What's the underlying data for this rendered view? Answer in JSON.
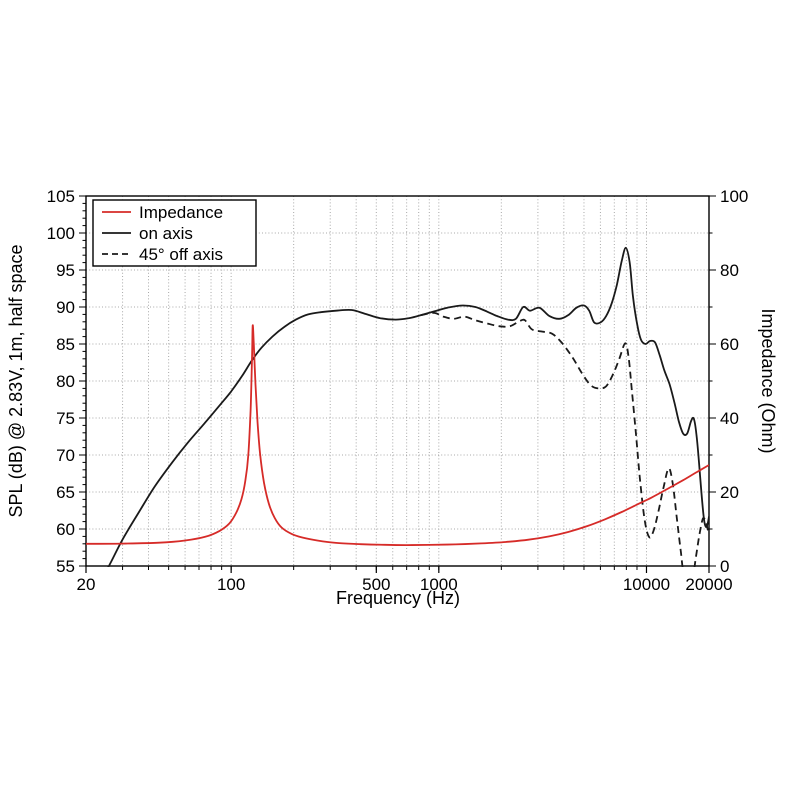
{
  "chart_data": {
    "type": "line",
    "title": "",
    "xlabel": "Frequency (Hz)",
    "ylabel_left": "SPL (dB) @ 2.83V, 1m, half space",
    "ylabel_right": "Impedance (Ohm)",
    "x_scale": "log",
    "xlim": [
      20,
      20000
    ],
    "ylim_left": [
      55,
      105
    ],
    "ylim_right": [
      0,
      100
    ],
    "x_ticks_labeled": [
      20,
      100,
      500,
      1000,
      10000,
      20000
    ],
    "y_ticks_left": [
      55,
      60,
      65,
      70,
      75,
      80,
      85,
      90,
      95,
      100,
      105
    ],
    "y_ticks_right": [
      0,
      20,
      40,
      60,
      80,
      100
    ],
    "grid": true,
    "legend_position": "upper left",
    "colors": {
      "impedance": "#d62b28",
      "spl": "#1a1a1a",
      "grid": "#a8a8a8",
      "frame": "#000000"
    },
    "series": [
      {
        "name": "Impedance",
        "axis": "right",
        "color": "#d62b28",
        "dash": "solid",
        "points": [
          [
            20,
            6.0
          ],
          [
            30,
            6.05
          ],
          [
            45,
            6.3
          ],
          [
            60,
            6.9
          ],
          [
            75,
            7.9
          ],
          [
            88,
            9.5
          ],
          [
            98,
            11.5
          ],
          [
            106,
            14.5
          ],
          [
            112,
            18
          ],
          [
            117,
            23
          ],
          [
            121,
            30
          ],
          [
            124,
            42
          ],
          [
            126,
            56
          ],
          [
            127,
            65
          ],
          [
            128.5,
            60
          ],
          [
            131,
            49
          ],
          [
            134,
            39
          ],
          [
            138,
            30
          ],
          [
            144,
            22.5
          ],
          [
            152,
            16.8
          ],
          [
            162,
            13.0
          ],
          [
            175,
            10.4
          ],
          [
            195,
            8.7
          ],
          [
            220,
            7.7
          ],
          [
            260,
            6.9
          ],
          [
            320,
            6.25
          ],
          [
            420,
            5.9
          ],
          [
            550,
            5.72
          ],
          [
            700,
            5.65
          ],
          [
            900,
            5.7
          ],
          [
            1200,
            5.85
          ],
          [
            1600,
            6.1
          ],
          [
            2100,
            6.5
          ],
          [
            2700,
            7.1
          ],
          [
            3400,
            8.0
          ],
          [
            4200,
            9.2
          ],
          [
            5200,
            10.8
          ],
          [
            6300,
            12.6
          ],
          [
            7600,
            14.6
          ],
          [
            9000,
            16.6
          ],
          [
            10500,
            18.4
          ],
          [
            12500,
            20.7
          ],
          [
            15000,
            23.2
          ],
          [
            17500,
            25.4
          ],
          [
            20000,
            27.3
          ]
        ]
      },
      {
        "name": "on axis",
        "axis": "left",
        "color": "#1a1a1a",
        "dash": "solid",
        "points": [
          [
            22,
            51.5
          ],
          [
            26,
            55.2
          ],
          [
            30,
            58.6
          ],
          [
            36,
            62.3
          ],
          [
            43,
            65.8
          ],
          [
            52,
            69.0
          ],
          [
            62,
            71.7
          ],
          [
            74,
            74.2
          ],
          [
            88,
            76.7
          ],
          [
            100,
            78.6
          ],
          [
            113,
            80.7
          ],
          [
            126,
            82.8
          ],
          [
            140,
            84.5
          ],
          [
            158,
            86.0
          ],
          [
            180,
            87.3
          ],
          [
            205,
            88.3
          ],
          [
            235,
            89.0
          ],
          [
            270,
            89.3
          ],
          [
            320,
            89.5
          ],
          [
            380,
            89.6
          ],
          [
            440,
            89.1
          ],
          [
            520,
            88.5
          ],
          [
            620,
            88.3
          ],
          [
            720,
            88.5
          ],
          [
            820,
            88.9
          ],
          [
            950,
            89.4
          ],
          [
            1100,
            89.9
          ],
          [
            1300,
            90.2
          ],
          [
            1500,
            90.0
          ],
          [
            1700,
            89.4
          ],
          [
            1900,
            88.8
          ],
          [
            2150,
            88.3
          ],
          [
            2350,
            88.4
          ],
          [
            2550,
            90.0
          ],
          [
            2750,
            89.5
          ],
          [
            3050,
            89.9
          ],
          [
            3400,
            88.8
          ],
          [
            3800,
            88.4
          ],
          [
            4200,
            88.9
          ],
          [
            4600,
            89.9
          ],
          [
            5000,
            90.2
          ],
          [
            5300,
            89.5
          ],
          [
            5600,
            87.9
          ],
          [
            6000,
            87.9
          ],
          [
            6400,
            88.8
          ],
          [
            6800,
            90.5
          ],
          [
            7200,
            93.0
          ],
          [
            7600,
            96.2
          ],
          [
            7950,
            98.0
          ],
          [
            8300,
            96.0
          ],
          [
            8600,
            91.5
          ],
          [
            9000,
            87.8
          ],
          [
            9400,
            85.6
          ],
          [
            9900,
            85.0
          ],
          [
            10400,
            85.4
          ],
          [
            11000,
            85.2
          ],
          [
            11600,
            83.4
          ],
          [
            12200,
            81.4
          ],
          [
            12900,
            79.6
          ],
          [
            13600,
            77.2
          ],
          [
            14300,
            74.6
          ],
          [
            15000,
            72.9
          ],
          [
            15700,
            72.9
          ],
          [
            16400,
            74.6
          ],
          [
            16900,
            74.9
          ],
          [
            17400,
            72.8
          ],
          [
            17900,
            69.0
          ],
          [
            18400,
            64.8
          ],
          [
            18900,
            61.4
          ],
          [
            19300,
            60.3
          ],
          [
            19700,
            60.7
          ],
          [
            20000,
            61.7
          ]
        ]
      },
      {
        "name": "45° off axis",
        "axis": "left",
        "color": "#1a1a1a",
        "dash": "dashed",
        "points": [
          [
            820,
            88.9
          ],
          [
            950,
            89.2
          ],
          [
            1050,
            88.7
          ],
          [
            1180,
            88.4
          ],
          [
            1330,
            88.7
          ],
          [
            1500,
            88.2
          ],
          [
            1700,
            87.8
          ],
          [
            1950,
            87.4
          ],
          [
            2200,
            87.4
          ],
          [
            2450,
            88.1
          ],
          [
            2600,
            88.2
          ],
          [
            2800,
            87.0
          ],
          [
            3100,
            86.7
          ],
          [
            3500,
            86.4
          ],
          [
            3900,
            85.2
          ],
          [
            4400,
            83.2
          ],
          [
            4900,
            81.0
          ],
          [
            5400,
            79.4
          ],
          [
            5900,
            79.0
          ],
          [
            6400,
            79.3
          ],
          [
            6900,
            80.9
          ],
          [
            7400,
            83.0
          ],
          [
            7900,
            85.1
          ],
          [
            8200,
            83.2
          ],
          [
            8500,
            78.8
          ],
          [
            8900,
            72.8
          ],
          [
            9300,
            66.8
          ],
          [
            9800,
            61.2
          ],
          [
            10300,
            58.9
          ],
          [
            10800,
            59.7
          ],
          [
            11400,
            62.3
          ],
          [
            12100,
            65.7
          ],
          [
            12800,
            68.2
          ],
          [
            13400,
            66.0
          ],
          [
            14000,
            61.5
          ],
          [
            14600,
            57.2
          ],
          [
            15200,
            53.8
          ],
          [
            16600,
            53.5
          ],
          [
            17300,
            56.2
          ],
          [
            18000,
            59.3
          ],
          [
            18700,
            61.4
          ],
          [
            19300,
            61.0
          ],
          [
            19700,
            60.0
          ],
          [
            20000,
            59.4
          ]
        ]
      }
    ]
  }
}
